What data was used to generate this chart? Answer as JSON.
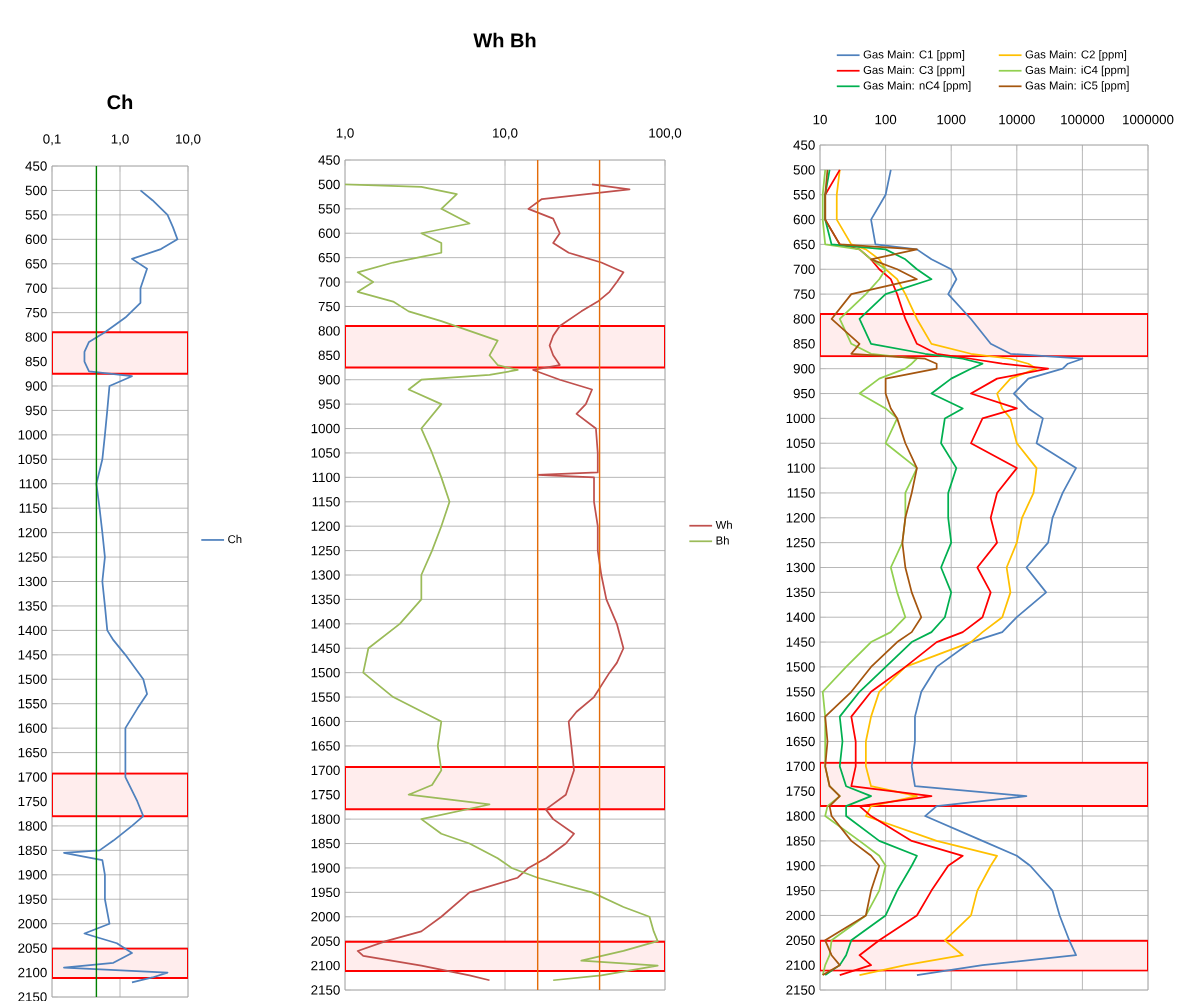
{
  "chart_data": [
    {
      "type": "line",
      "title": "Ch",
      "orientation": "horizontal",
      "log": "x",
      "grid": true,
      "legend": "right",
      "marker": "none",
      "line_style": "solid",
      "xlim": [
        0.1,
        10
      ],
      "xticks": [
        {
          "value": 0.1,
          "label": "0,1"
        },
        {
          "value": 1,
          "label": "1,0"
        },
        {
          "value": 10,
          "label": "10,0"
        }
      ],
      "ylim": [
        2150,
        450
      ],
      "yticks": [
        450,
        500,
        550,
        600,
        650,
        700,
        750,
        800,
        850,
        900,
        950,
        1000,
        1050,
        1100,
        1150,
        1200,
        1250,
        1300,
        1350,
        1400,
        1450,
        1500,
        1550,
        1600,
        1650,
        1700,
        1750,
        1800,
        1850,
        1900,
        1950,
        2000,
        2050,
        2100,
        2150
      ],
      "series": [
        {
          "name": "Ch",
          "color": "#4f81bd",
          "x": [
            500,
            520,
            550,
            575,
            600,
            620,
            640,
            660,
            700,
            730,
            760,
            790,
            810,
            830,
            850,
            870,
            880,
            900,
            950,
            1000,
            1050,
            1100,
            1150,
            1200,
            1250,
            1300,
            1350,
            1400,
            1420,
            1450,
            1500,
            1530,
            1560,
            1600,
            1650,
            1700,
            1750,
            1780,
            1800,
            1830,
            1850,
            1855,
            1870,
            1900,
            1950,
            2000,
            2020,
            2040,
            2060,
            2080,
            2090,
            2100,
            2110,
            2120
          ],
          "values": [
            2.0,
            3,
            5,
            6,
            7,
            4,
            1.5,
            2.5,
            2.0,
            2.0,
            1.2,
            0.6,
            0.35,
            0.3,
            0.3,
            0.35,
            1.5,
            0.7,
            0.65,
            0.6,
            0.55,
            0.45,
            0.5,
            0.55,
            0.6,
            0.55,
            0.6,
            0.65,
            0.8,
            1.2,
            2.2,
            2.5,
            1.8,
            1.2,
            1.2,
            1.2,
            1.8,
            2.2,
            1.5,
            0.8,
            0.5,
            0.15,
            0.55,
            0.6,
            0.6,
            0.7,
            0.3,
            0.9,
            1.5,
            0.8,
            0.15,
            5,
            3,
            1.5
          ]
        }
      ],
      "ref_lines": [
        {
          "axis": "x",
          "value": 0.45,
          "color": "#008000"
        }
      ],
      "bands": [
        {
          "axis": "y",
          "from": 790,
          "to": 875,
          "color": "#ffeded"
        },
        {
          "axis": "y",
          "from": 1693,
          "to": 1780,
          "color": "#ffeded"
        },
        {
          "axis": "y",
          "from": 2051,
          "to": 2111,
          "color": "#ffeded"
        }
      ]
    },
    {
      "type": "line",
      "title": "Wh Bh",
      "orientation": "horizontal",
      "log": "x",
      "grid": true,
      "legend": "right",
      "marker": "none",
      "line_style": "solid",
      "xlim": [
        1,
        100
      ],
      "xticks": [
        {
          "value": 1,
          "label": "1,0"
        },
        {
          "value": 10,
          "label": "10,0"
        },
        {
          "value": 100,
          "label": "100,0"
        }
      ],
      "ylim": [
        2150,
        450
      ],
      "yticks": [
        450,
        500,
        550,
        600,
        650,
        700,
        750,
        800,
        850,
        900,
        950,
        1000,
        1050,
        1100,
        1150,
        1200,
        1250,
        1300,
        1350,
        1400,
        1450,
        1500,
        1550,
        1600,
        1650,
        1700,
        1750,
        1800,
        1850,
        1900,
        1950,
        2000,
        2050,
        2100,
        2150
      ],
      "series": [
        {
          "name": "Wh",
          "color": "#c0504d",
          "x": [
            500,
            510,
            530,
            550,
            570,
            600,
            620,
            640,
            660,
            680,
            700,
            720,
            740,
            760,
            790,
            810,
            830,
            850,
            870,
            880,
            900,
            920,
            950,
            970,
            1000,
            1050,
            1090,
            1095,
            1100,
            1150,
            1200,
            1250,
            1300,
            1350,
            1400,
            1450,
            1480,
            1500,
            1550,
            1580,
            1600,
            1650,
            1700,
            1750,
            1780,
            1800,
            1830,
            1850,
            1880,
            1900,
            1920,
            1950,
            2000,
            2030,
            2050,
            2070,
            2080,
            2100,
            2120,
            2130
          ],
          "values": [
            35,
            60,
            17,
            14,
            20,
            22,
            20,
            25,
            40,
            55,
            50,
            45,
            38,
            30,
            22,
            20,
            19,
            20,
            22,
            15,
            22,
            35,
            32,
            28,
            37,
            38,
            38,
            16,
            36,
            36,
            38,
            38,
            40,
            43,
            50,
            55,
            50,
            45,
            36,
            28,
            25,
            26,
            27,
            24,
            18,
            20,
            27,
            24,
            18,
            14,
            12,
            6,
            4,
            3,
            1.8,
            1.2,
            1.3,
            3,
            6,
            8
          ]
        },
        {
          "name": "Bh",
          "color": "#9bbb59",
          "x": [
            500,
            505,
            520,
            550,
            580,
            600,
            620,
            640,
            660,
            680,
            700,
            720,
            740,
            760,
            780,
            800,
            820,
            850,
            870,
            880,
            890,
            900,
            920,
            950,
            1000,
            1050,
            1100,
            1150,
            1200,
            1250,
            1300,
            1350,
            1400,
            1450,
            1500,
            1550,
            1600,
            1650,
            1700,
            1730,
            1750,
            1770,
            1800,
            1830,
            1850,
            1880,
            1900,
            1920,
            1950,
            1980,
            2000,
            2030,
            2050,
            2070,
            2090,
            2100,
            2120,
            2130
          ],
          "values": [
            1.0,
            3,
            5,
            4,
            6,
            3,
            4,
            4,
            2,
            1.2,
            1.5,
            1.2,
            2,
            2.5,
            4,
            6,
            9,
            8,
            9,
            12,
            8,
            3,
            2.5,
            4,
            3,
            3.5,
            4,
            4.5,
            4,
            3.5,
            3,
            3,
            2.2,
            1.4,
            1.3,
            2,
            4,
            3.8,
            4,
            3.5,
            2.5,
            8,
            3,
            4,
            6,
            9,
            11,
            16,
            35,
            55,
            80,
            85,
            90,
            55,
            30,
            90,
            40,
            20
          ]
        }
      ],
      "ref_lines": [
        {
          "axis": "x",
          "value": 16,
          "color": "#e36c09"
        },
        {
          "axis": "x",
          "value": 39,
          "color": "#e36c09"
        }
      ],
      "bands": [
        {
          "axis": "y",
          "from": 790,
          "to": 875,
          "color": "#ffeded"
        },
        {
          "axis": "y",
          "from": 1693,
          "to": 1780,
          "color": "#ffeded"
        },
        {
          "axis": "y",
          "from": 2051,
          "to": 2111,
          "color": "#ffeded"
        }
      ]
    },
    {
      "type": "line",
      "orientation": "horizontal",
      "log": "x",
      "grid": true,
      "legend": "top",
      "marker": "none",
      "line_style": "solid",
      "xlim": [
        10,
        1000000
      ],
      "xticks": [
        10,
        100,
        1000,
        10000,
        100000,
        1000000
      ],
      "ylim": [
        2150,
        450
      ],
      "yticks": [
        450,
        500,
        550,
        600,
        650,
        700,
        750,
        800,
        850,
        900,
        950,
        1000,
        1050,
        1100,
        1150,
        1200,
        1250,
        1300,
        1350,
        1400,
        1450,
        1500,
        1550,
        1600,
        1650,
        1700,
        1750,
        1800,
        1850,
        1900,
        1950,
        2000,
        2050,
        2100,
        2150
      ],
      "x": [
        500,
        550,
        600,
        650,
        660,
        680,
        700,
        720,
        750,
        800,
        850,
        870,
        880,
        890,
        900,
        920,
        950,
        980,
        1000,
        1050,
        1100,
        1150,
        1200,
        1250,
        1300,
        1350,
        1400,
        1430,
        1450,
        1500,
        1550,
        1600,
        1650,
        1700,
        1740,
        1760,
        1780,
        1800,
        1850,
        1880,
        1900,
        1950,
        2000,
        2050,
        2080,
        2100,
        2120
      ],
      "series": [
        {
          "name": "Gas Main: C1 [ppm]",
          "color": "#4f81bd",
          "values": [
            120,
            100,
            60,
            70,
            300,
            500,
            1000,
            1200,
            900,
            2000,
            4000,
            8000,
            100000,
            60000,
            50000,
            15000,
            9000,
            15000,
            25000,
            20000,
            80000,
            50000,
            35000,
            30000,
            14000,
            28000,
            10000,
            6000,
            2000,
            600,
            350,
            280,
            280,
            250,
            280,
            14000,
            600,
            400,
            3000,
            10000,
            16000,
            35000,
            45000,
            63000,
            80000,
            3000,
            300
          ]
        },
        {
          "name": "Gas Main: C2 [ppm]",
          "color": "#ffc000",
          "values": [
            20,
            18,
            18,
            30,
            50,
            80,
            100,
            150,
            200,
            300,
            500,
            2000,
            8000,
            15000,
            20000,
            8000,
            5000,
            6000,
            8000,
            10000,
            20000,
            18000,
            12000,
            10000,
            7000,
            8000,
            6000,
            3000,
            2000,
            200,
            80,
            60,
            50,
            50,
            60,
            300,
            60,
            50,
            600,
            5000,
            4000,
            2500,
            2000,
            800,
            1500,
            200,
            40
          ]
        },
        {
          "name": "Gas Main: C3 [ppm]",
          "color": "#ff0000",
          "values": [
            20,
            12,
            12,
            20,
            40,
            60,
            80,
            120,
            150,
            200,
            300,
            600,
            2000,
            6000,
            30000,
            5000,
            2000,
            10000,
            3000,
            2000,
            10000,
            5000,
            4000,
            5000,
            2500,
            4000,
            3000,
            1500,
            600,
            200,
            60,
            30,
            35,
            35,
            30,
            500,
            40,
            60,
            250,
            1500,
            900,
            500,
            300,
            80,
            40,
            60,
            20
          ]
        },
        {
          "name": "Gas Main: iC4 [ppm]",
          "color": "#92d050",
          "values": [
            12,
            11,
            11,
            12,
            40,
            60,
            100,
            80,
            50,
            20,
            30,
            60,
            300,
            250,
            200,
            80,
            40,
            100,
            150,
            100,
            300,
            200,
            200,
            180,
            120,
            150,
            200,
            120,
            60,
            25,
            11,
            12,
            12,
            12,
            14,
            20,
            13,
            12,
            40,
            80,
            100,
            80,
            50,
            15,
            14,
            12,
            11
          ]
        },
        {
          "name": "Gas Main: nC4 [ppm]",
          "color": "#00b050",
          "values": [
            14,
            12,
            12,
            15,
            100,
            200,
            300,
            500,
            100,
            40,
            60,
            400,
            1500,
            3000,
            2000,
            1000,
            500,
            1500,
            800,
            700,
            1200,
            900,
            900,
            1000,
            700,
            1000,
            800,
            500,
            250,
            100,
            40,
            20,
            22,
            20,
            25,
            60,
            25,
            25,
            80,
            300,
            250,
            150,
            100,
            30,
            25,
            20,
            12
          ]
        },
        {
          "name": "Gas Main: iC5 [ppm]",
          "color": "#a5560f",
          "values": [
            13,
            12,
            12,
            20,
            300,
            60,
            150,
            300,
            30,
            15,
            40,
            30,
            400,
            600,
            600,
            100,
            100,
            120,
            150,
            200,
            300,
            250,
            200,
            180,
            200,
            250,
            350,
            250,
            150,
            60,
            30,
            12,
            13,
            12,
            14,
            20,
            14,
            15,
            30,
            60,
            80,
            60,
            50,
            12,
            15,
            20,
            11
          ]
        }
      ],
      "bands": [
        {
          "axis": "y",
          "from": 790,
          "to": 875,
          "color": "#ffeded"
        },
        {
          "axis": "y",
          "from": 1693,
          "to": 1780,
          "color": "#ffeded"
        },
        {
          "axis": "y",
          "from": 2051,
          "to": 2111,
          "color": "#ffeded"
        }
      ]
    }
  ]
}
